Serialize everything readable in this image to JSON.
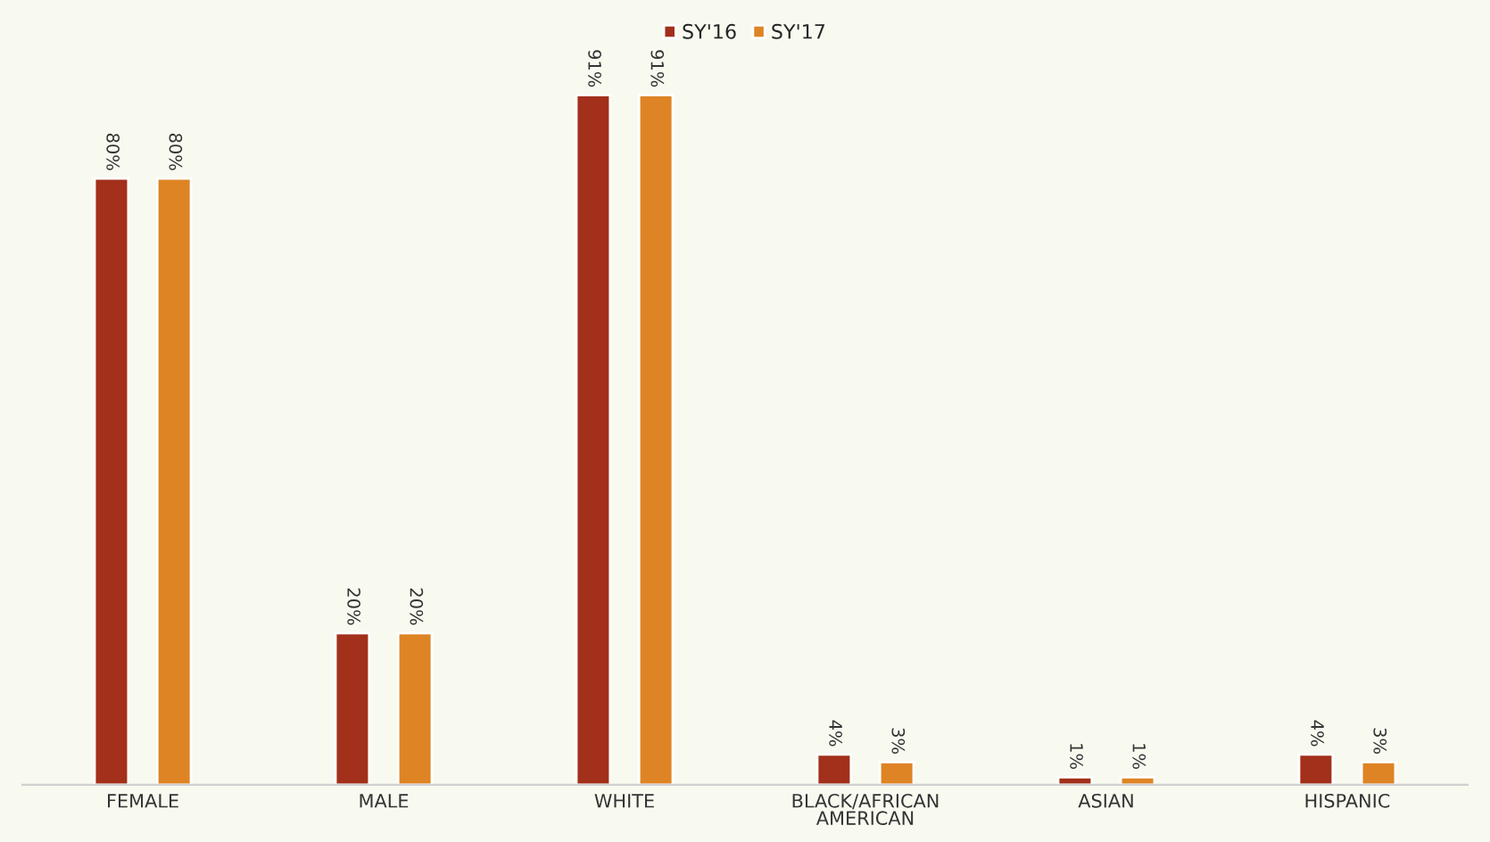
{
  "chart_data": {
    "type": "bar",
    "categories": [
      "FEMALE",
      "MALE",
      "WHITE",
      "BLACK/AFRICAN\nAMERICAN",
      "ASIAN",
      "HISPANIC"
    ],
    "series": [
      {
        "name": "SY'16",
        "color": "#a2301a",
        "values": [
          80,
          20,
          91,
          4,
          1,
          4
        ],
        "value_labels": [
          "80%",
          "20%",
          "91%",
          "4%",
          "1%",
          "4%"
        ]
      },
      {
        "name": "SY'17",
        "color": "#de8424",
        "values": [
          80,
          20,
          91,
          3,
          1,
          3
        ],
        "value_labels": [
          "80%",
          "20%",
          "91%",
          "3%",
          "1%",
          "3%"
        ]
      }
    ],
    "tick_labels": "x",
    "legend": "top",
    "grid": false
  }
}
